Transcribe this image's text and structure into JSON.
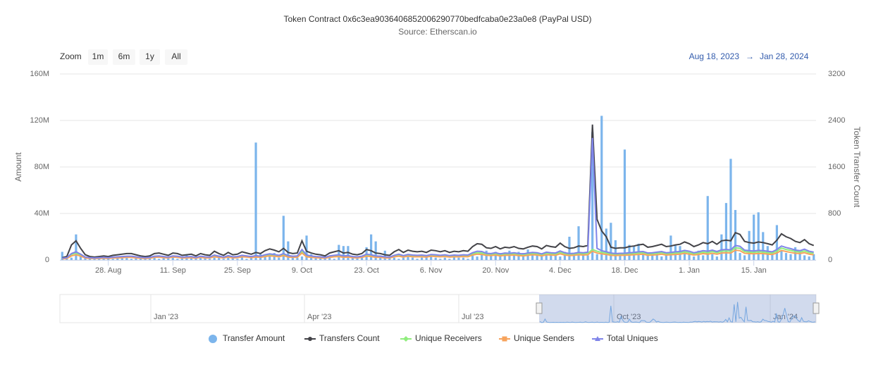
{
  "controls": {
    "zoom_label": "Zoom",
    "buttons": [
      "1m",
      "6m",
      "1y",
      "All"
    ],
    "range_from": "Aug 18, 2023",
    "range_arrow": "→",
    "range_to": "Jan 28, 2024",
    "navigator_labels": [
      "Jan '23",
      "Apr '23",
      "Jul '23",
      "Oct '23",
      "Jan '24"
    ]
  },
  "chart_data": {
    "type": "combo",
    "title": "Token Contract 0x6c3ea9036406852006290770bedfcaba0e23a0e8 (PayPal USD)",
    "subtitle": "Source: Etherscan.io",
    "y_label": "Amount",
    "y2_label": "Token Transfer Count",
    "ylim": [
      0,
      160
    ],
    "yticks": [
      0,
      {
        "value": 40,
        "label": "40M"
      },
      {
        "value": 80,
        "label": "80M"
      },
      {
        "value": 120,
        "label": "120M"
      },
      {
        "value": 160,
        "label": "160M"
      }
    ],
    "y2lim": [
      0,
      3200
    ],
    "y2ticks": [
      0,
      800,
      1600,
      2400,
      3200
    ],
    "grid": true,
    "legend": "bottom",
    "xticks": [
      {
        "value": "2023-08-28",
        "label": "28. Aug"
      },
      {
        "value": "2023-09-11",
        "label": "11. Sep"
      },
      {
        "value": "2023-09-25",
        "label": "25. Sep"
      },
      {
        "value": "2023-10-09",
        "label": "9. Oct"
      },
      {
        "value": "2023-10-23",
        "label": "23. Oct"
      },
      {
        "value": "2023-11-06",
        "label": "6. Nov"
      },
      {
        "value": "2023-11-20",
        "label": "20. Nov"
      },
      {
        "value": "2023-12-04",
        "label": "4. Dec"
      },
      {
        "value": "2023-12-18",
        "label": "18. Dec"
      },
      {
        "value": "2024-01-01",
        "label": "1. Jan"
      },
      {
        "value": "2024-01-15",
        "label": "15. Jan"
      }
    ],
    "x": [
      "2023-08-18",
      "2023-08-19",
      "2023-08-20",
      "2023-08-21",
      "2023-08-22",
      "2023-08-23",
      "2023-08-24",
      "2023-08-25",
      "2023-08-26",
      "2023-08-27",
      "2023-08-28",
      "2023-08-29",
      "2023-08-30",
      "2023-08-31",
      "2023-09-01",
      "2023-09-02",
      "2023-09-03",
      "2023-09-04",
      "2023-09-05",
      "2023-09-06",
      "2023-09-07",
      "2023-09-08",
      "2023-09-09",
      "2023-09-10",
      "2023-09-11",
      "2023-09-12",
      "2023-09-13",
      "2023-09-14",
      "2023-09-15",
      "2023-09-16",
      "2023-09-17",
      "2023-09-18",
      "2023-09-19",
      "2023-09-20",
      "2023-09-21",
      "2023-09-22",
      "2023-09-23",
      "2023-09-24",
      "2023-09-25",
      "2023-09-26",
      "2023-09-27",
      "2023-09-28",
      "2023-09-29",
      "2023-09-30",
      "2023-10-01",
      "2023-10-02",
      "2023-10-03",
      "2023-10-04",
      "2023-10-05",
      "2023-10-06",
      "2023-10-07",
      "2023-10-08",
      "2023-10-09",
      "2023-10-10",
      "2023-10-11",
      "2023-10-12",
      "2023-10-13",
      "2023-10-14",
      "2023-10-15",
      "2023-10-16",
      "2023-10-17",
      "2023-10-18",
      "2023-10-19",
      "2023-10-20",
      "2023-10-21",
      "2023-10-22",
      "2023-10-23",
      "2023-10-24",
      "2023-10-25",
      "2023-10-26",
      "2023-10-27",
      "2023-10-28",
      "2023-10-29",
      "2023-10-30",
      "2023-10-31",
      "2023-11-01",
      "2023-11-02",
      "2023-11-03",
      "2023-11-04",
      "2023-11-05",
      "2023-11-06",
      "2023-11-07",
      "2023-11-08",
      "2023-11-09",
      "2023-11-10",
      "2023-11-11",
      "2023-11-12",
      "2023-11-13",
      "2023-11-14",
      "2023-11-15",
      "2023-11-16",
      "2023-11-17",
      "2023-11-18",
      "2023-11-19",
      "2023-11-20",
      "2023-11-21",
      "2023-11-22",
      "2023-11-23",
      "2023-11-24",
      "2023-11-25",
      "2023-11-26",
      "2023-11-27",
      "2023-11-28",
      "2023-11-29",
      "2023-11-30",
      "2023-12-01",
      "2023-12-02",
      "2023-12-03",
      "2023-12-04",
      "2023-12-05",
      "2023-12-06",
      "2023-12-07",
      "2023-12-08",
      "2023-12-09",
      "2023-12-10",
      "2023-12-11",
      "2023-12-12",
      "2023-12-13",
      "2023-12-14",
      "2023-12-15",
      "2023-12-16",
      "2023-12-17",
      "2023-12-18",
      "2023-12-19",
      "2023-12-20",
      "2023-12-21",
      "2023-12-22",
      "2023-12-23",
      "2023-12-24",
      "2023-12-25",
      "2023-12-26",
      "2023-12-27",
      "2023-12-28",
      "2023-12-29",
      "2023-12-30",
      "2023-12-31",
      "2024-01-01",
      "2024-01-02",
      "2024-01-03",
      "2024-01-04",
      "2024-01-05",
      "2024-01-06",
      "2024-01-07",
      "2024-01-08",
      "2024-01-09",
      "2024-01-10",
      "2024-01-11",
      "2024-01-12",
      "2024-01-13",
      "2024-01-14",
      "2024-01-15",
      "2024-01-16",
      "2024-01-17",
      "2024-01-18",
      "2024-01-19",
      "2024-01-20",
      "2024-01-21",
      "2024-01-22",
      "2024-01-23",
      "2024-01-24",
      "2024-01-25",
      "2024-01-26",
      "2024-01-27",
      "2024-01-28"
    ],
    "series": [
      {
        "name": "Transfer Amount",
        "type": "bar",
        "marker": "circle",
        "color": "#7cb5ec",
        "values": [
          7,
          1,
          2,
          22,
          4,
          2,
          1,
          1.5,
          2,
          1,
          2,
          1,
          2,
          1.5,
          2,
          1,
          3,
          2,
          1,
          4,
          2,
          1,
          1.5,
          2,
          3,
          1,
          2,
          5,
          2,
          1,
          2,
          3,
          1,
          2,
          4,
          1,
          2,
          2,
          1,
          3,
          1,
          2,
          101,
          5,
          4,
          3,
          6,
          2,
          38,
          16,
          3,
          2,
          3,
          21,
          5,
          2,
          3,
          4,
          2,
          1,
          13,
          12,
          12,
          3,
          2,
          2,
          11,
          22,
          16,
          4,
          8,
          3,
          2,
          1,
          2,
          3,
          2,
          1,
          2,
          3,
          4,
          2,
          1,
          2,
          1,
          3,
          2,
          2,
          1,
          4,
          3,
          6,
          8,
          5,
          7,
          6,
          4,
          8,
          5,
          7,
          6,
          9,
          4,
          6,
          5,
          5,
          4,
          6,
          3,
          7,
          20,
          5,
          29,
          6,
          4,
          110,
          5,
          124,
          27,
          32,
          17,
          5,
          95,
          13,
          12,
          14,
          6,
          5,
          4,
          6,
          3,
          5,
          21,
          13,
          12,
          7,
          6,
          3,
          8,
          4,
          55,
          5,
          3,
          22,
          49,
          87,
          43,
          6,
          4,
          25,
          39,
          41,
          24,
          12,
          6,
          30,
          8,
          6,
          5,
          11,
          7,
          4,
          3,
          5
        ]
      },
      {
        "name": "Transfers Count",
        "type": "line",
        "axis": "y2",
        "marker": "dot",
        "color": "#434348",
        "values": [
          40,
          60,
          260,
          330,
          200,
          90,
          60,
          50,
          60,
          70,
          60,
          80,
          90,
          100,
          110,
          110,
          90,
          70,
          60,
          70,
          110,
          120,
          100,
          80,
          120,
          110,
          80,
          90,
          100,
          70,
          110,
          90,
          80,
          150,
          110,
          80,
          130,
          90,
          100,
          140,
          120,
          100,
          130,
          110,
          160,
          190,
          170,
          140,
          200,
          130,
          110,
          120,
          330,
          150,
          120,
          100,
          90,
          70,
          120,
          140,
          160,
          120,
          130,
          100,
          90,
          110,
          180,
          160,
          120,
          110,
          90,
          80,
          140,
          180,
          130,
          170,
          150,
          140,
          150,
          130,
          170,
          160,
          140,
          160,
          130,
          150,
          140,
          160,
          150,
          230,
          280,
          270,
          210,
          200,
          230,
          190,
          220,
          210,
          230,
          200,
          190,
          220,
          240,
          230,
          190,
          250,
          230,
          220,
          290,
          230,
          200,
          210,
          240,
          230,
          250,
          2330,
          700,
          500,
          400,
          220,
          200,
          210,
          210,
          230,
          240,
          260,
          270,
          220,
          230,
          250,
          270,
          230,
          240,
          260,
          270,
          310,
          280,
          230,
          260,
          300,
          280,
          320,
          270,
          330,
          340,
          330,
          470,
          440,
          320,
          300,
          290,
          310,
          300,
          280,
          260,
          340,
          450,
          400,
          370,
          320,
          300,
          350,
          280,
          250
        ]
      },
      {
        "name": "Unique Receivers",
        "type": "line",
        "axis": "y2",
        "marker": "diamond",
        "color": "#90ed7d",
        "values": [
          25,
          35,
          95,
          120,
          85,
          45,
          35,
          30,
          35,
          40,
          35,
          45,
          45,
          50,
          55,
          55,
          45,
          40,
          35,
          40,
          55,
          60,
          50,
          45,
          60,
          55,
          45,
          45,
          50,
          40,
          55,
          45,
          45,
          70,
          55,
          45,
          65,
          45,
          50,
          70,
          60,
          50,
          65,
          55,
          75,
          90,
          80,
          70,
          95,
          65,
          55,
          60,
          150,
          70,
          60,
          50,
          45,
          40,
          60,
          70,
          75,
          60,
          65,
          50,
          45,
          55,
          85,
          75,
          60,
          55,
          45,
          45,
          70,
          85,
          65,
          80,
          70,
          70,
          70,
          65,
          80,
          75,
          70,
          75,
          65,
          70,
          70,
          75,
          70,
          105,
          125,
          120,
          100,
          95,
          105,
          90,
          100,
          100,
          105,
          95,
          90,
          100,
          110,
          105,
          90,
          115,
          105,
          100,
          130,
          105,
          95,
          100,
          110,
          105,
          115,
          180,
          150,
          130,
          120,
          100,
          95,
          100,
          100,
          105,
          110,
          120,
          125,
          100,
          105,
          115,
          125,
          105,
          110,
          120,
          125,
          140,
          125,
          105,
          120,
          135,
          125,
          145,
          125,
          150,
          155,
          150,
          210,
          200,
          145,
          135,
          130,
          140,
          135,
          125,
          120,
          150,
          205,
          180,
          165,
          145,
          135,
          155,
          125,
          115
        ]
      },
      {
        "name": "Unique Senders",
        "type": "line",
        "axis": "y2",
        "marker": "square",
        "color": "#f7a35c",
        "values": [
          20,
          25,
          70,
          90,
          65,
          35,
          25,
          25,
          25,
          30,
          25,
          35,
          35,
          40,
          45,
          45,
          35,
          30,
          25,
          30,
          45,
          50,
          40,
          35,
          50,
          45,
          35,
          35,
          40,
          30,
          45,
          35,
          35,
          55,
          45,
          35,
          50,
          35,
          40,
          55,
          50,
          40,
          50,
          45,
          60,
          70,
          65,
          55,
          75,
          50,
          45,
          45,
          120,
          55,
          45,
          40,
          35,
          30,
          45,
          55,
          60,
          45,
          50,
          40,
          35,
          45,
          65,
          60,
          45,
          45,
          35,
          35,
          55,
          65,
          50,
          65,
          55,
          55,
          55,
          50,
          65,
          60,
          55,
          60,
          50,
          55,
          55,
          60,
          55,
          85,
          100,
          95,
          80,
          75,
          85,
          70,
          80,
          80,
          85,
          75,
          70,
          80,
          90,
          85,
          70,
          90,
          85,
          80,
          105,
          85,
          75,
          80,
          90,
          85,
          90,
          150,
          120,
          105,
          95,
          80,
          75,
          80,
          80,
          85,
          90,
          95,
          100,
          80,
          85,
          90,
          100,
          85,
          90,
          95,
          100,
          115,
          100,
          85,
          95,
          110,
          100,
          115,
          100,
          120,
          125,
          120,
          170,
          160,
          115,
          110,
          105,
          110,
          110,
          100,
          95,
          120,
          165,
          145,
          130,
          115,
          110,
          125,
          100,
          90
        ]
      },
      {
        "name": "Total Uniques",
        "type": "line",
        "axis": "y2",
        "marker": "triangle",
        "color": "#8085e9",
        "values": [
          30,
          40,
          110,
          140,
          100,
          50,
          40,
          35,
          40,
          45,
          40,
          50,
          55,
          60,
          65,
          65,
          55,
          45,
          40,
          45,
          65,
          70,
          60,
          50,
          70,
          65,
          50,
          55,
          60,
          45,
          65,
          55,
          50,
          85,
          65,
          50,
          75,
          55,
          60,
          80,
          70,
          60,
          75,
          65,
          90,
          105,
          95,
          80,
          110,
          75,
          65,
          70,
          180,
          85,
          70,
          60,
          55,
          45,
          70,
          80,
          90,
          70,
          75,
          60,
          55,
          65,
          100,
          90,
          70,
          65,
          55,
          50,
          80,
          100,
          75,
          95,
          85,
          80,
          85,
          75,
          95,
          90,
          80,
          90,
          75,
          85,
          80,
          90,
          85,
          125,
          150,
          145,
          115,
          110,
          125,
          105,
          120,
          115,
          125,
          110,
          105,
          120,
          130,
          125,
          105,
          135,
          125,
          120,
          155,
          125,
          110,
          115,
          130,
          125,
          135,
          2100,
          200,
          160,
          140,
          120,
          110,
          115,
          115,
          125,
          130,
          140,
          145,
          120,
          125,
          135,
          145,
          125,
          130,
          140,
          145,
          165,
          150,
          125,
          140,
          160,
          150,
          170,
          145,
          175,
          180,
          175,
          250,
          235,
          170,
          160,
          155,
          165,
          160,
          150,
          140,
          180,
          240,
          215,
          195,
          170,
          160,
          185,
          150,
          135
        ]
      }
    ]
  }
}
